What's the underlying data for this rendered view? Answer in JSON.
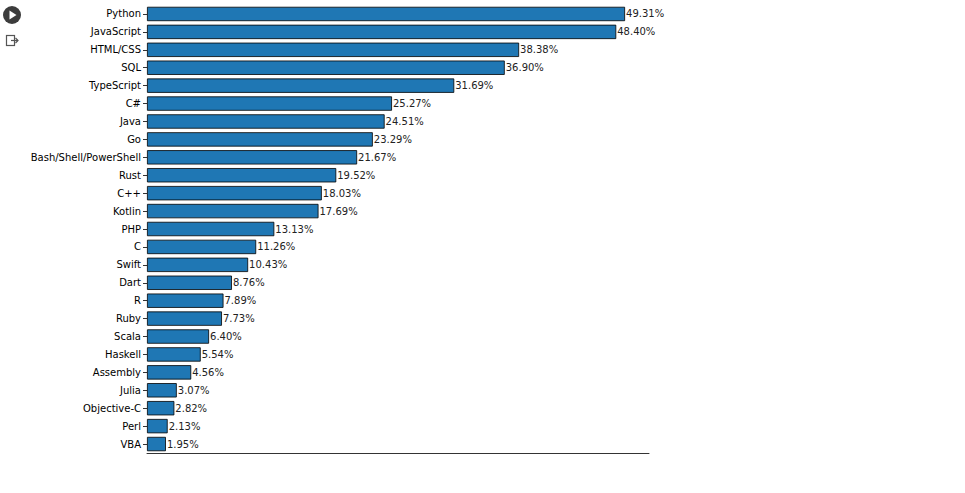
{
  "chart_data": {
    "type": "bar",
    "orientation": "horizontal",
    "categories": [
      "Python",
      "JavaScript",
      "HTML/CSS",
      "SQL",
      "TypeScript",
      "C#",
      "Java",
      "Go",
      "Bash/Shell/PowerShell",
      "Rust",
      "C++",
      "Kotlin",
      "PHP",
      "C",
      "Swift",
      "Dart",
      "R",
      "Ruby",
      "Scala",
      "Haskell",
      "Assembly",
      "Julia",
      "Objective-C",
      "Perl",
      "VBA"
    ],
    "values": [
      49.31,
      48.4,
      38.38,
      36.9,
      31.69,
      25.27,
      24.51,
      23.29,
      21.67,
      19.52,
      18.03,
      17.69,
      13.13,
      11.26,
      10.43,
      8.76,
      7.89,
      7.73,
      6.4,
      5.54,
      4.56,
      3.07,
      2.82,
      2.13,
      1.95
    ],
    "value_labels": [
      "49.31%",
      "48.40%",
      "38.38%",
      "36.90%",
      "31.69%",
      "25.27%",
      "24.51%",
      "23.29%",
      "21.67%",
      "19.52%",
      "18.03%",
      "17.69%",
      "13.13%",
      "11.26%",
      "10.43%",
      "8.76%",
      "7.89%",
      "7.73%",
      "6.40%",
      "5.54%",
      "4.56%",
      "3.07%",
      "2.82%",
      "2.13%",
      "1.95%"
    ],
    "color": "#1f77b4",
    "xlim": [
      0,
      51.78
    ],
    "data_labels": true,
    "tick_labels": "y",
    "grid": false
  }
}
